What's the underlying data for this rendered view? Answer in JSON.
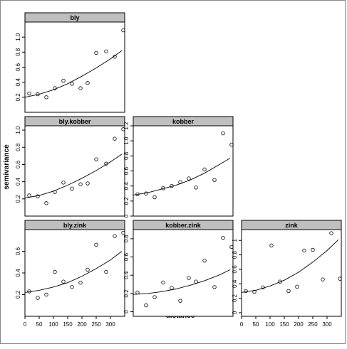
{
  "figure": {
    "ylabel": "semivariance",
    "xlabel": "distance"
  },
  "chart_data": [
    {
      "type": "scatter",
      "title": "bly",
      "xlim": [
        0,
        350
      ],
      "ylim": [
        0,
        1.2
      ],
      "yticks": [
        0.2,
        0.4,
        0.6,
        0.8,
        1.0
      ],
      "ytick_labels": [
        "0.2",
        "0.4",
        "0.6",
        "0.8",
        "1.0"
      ],
      "points": {
        "x": [
          15,
          45,
          75,
          105,
          135,
          165,
          195,
          220,
          250,
          285,
          315,
          345
        ],
        "y": [
          0.25,
          0.24,
          0.2,
          0.32,
          0.42,
          0.38,
          0.32,
          0.39,
          0.79,
          0.81,
          0.74,
          1.09
        ]
      },
      "fit": {
        "x": [
          0,
          50,
          100,
          150,
          200,
          250,
          300,
          340
        ],
        "y": [
          0.2,
          0.24,
          0.3,
          0.38,
          0.48,
          0.59,
          0.71,
          0.82
        ]
      }
    },
    {
      "type": "scatter",
      "title": "bly.kobber",
      "xlim": [
        0,
        350
      ],
      "ylim": [
        0,
        1.05
      ],
      "yticks": [
        0.2,
        0.4,
        0.6,
        0.8,
        1.0
      ],
      "ytick_labels": [
        "0.2",
        "0.4",
        "0.6",
        "0.8",
        "1.0"
      ],
      "points": {
        "x": [
          15,
          45,
          75,
          105,
          135,
          165,
          195,
          220,
          250,
          285,
          315,
          345
        ],
        "y": [
          0.24,
          0.23,
          0.15,
          0.28,
          0.39,
          0.32,
          0.37,
          0.38,
          0.66,
          0.61,
          0.9,
          1.01
        ]
      },
      "fit": {
        "x": [
          0,
          50,
          100,
          150,
          200,
          250,
          300,
          340
        ],
        "y": [
          0.21,
          0.24,
          0.29,
          0.36,
          0.44,
          0.53,
          0.63,
          0.72
        ]
      }
    },
    {
      "type": "scatter",
      "title": "kobber",
      "xlim": [
        0,
        350
      ],
      "ylim": [
        0,
        1.2
      ],
      "yticks": [
        0,
        0.2,
        0.4,
        0.6,
        0.8,
        1.0,
        1.2
      ],
      "ytick_labels": [
        "0",
        "0.2",
        "0.4",
        "0.6",
        "0.8",
        "1.0",
        "1.2"
      ],
      "points": {
        "x": [
          15,
          45,
          75,
          105,
          135,
          165,
          195,
          220,
          250,
          285,
          315,
          345
        ],
        "y": [
          0.29,
          0.3,
          0.25,
          0.37,
          0.4,
          0.45,
          0.5,
          0.38,
          0.62,
          0.48,
          1.1,
          0.95
        ]
      },
      "fit": {
        "x": [
          0,
          50,
          100,
          150,
          200,
          250,
          300,
          340
        ],
        "y": [
          0.28,
          0.31,
          0.36,
          0.41,
          0.48,
          0.57,
          0.68,
          0.77
        ]
      }
    },
    {
      "type": "scatter",
      "title": "bly.zink",
      "xlim": [
        0,
        350
      ],
      "ylim": [
        0,
        0.8
      ],
      "yticks": [
        0.2,
        0.4,
        0.6
      ],
      "ytick_labels": [
        "0.2",
        "0.4",
        "0.6"
      ],
      "points": {
        "x": [
          15,
          45,
          75,
          105,
          135,
          165,
          195,
          220,
          250,
          285,
          315,
          345
        ],
        "y": [
          0.23,
          0.17,
          0.2,
          0.41,
          0.32,
          0.27,
          0.31,
          0.43,
          0.66,
          0.41,
          0.74,
          0.77
        ]
      },
      "fit": {
        "x": [
          0,
          50,
          100,
          150,
          200,
          250,
          300,
          340
        ],
        "y": [
          0.22,
          0.24,
          0.27,
          0.31,
          0.37,
          0.44,
          0.52,
          0.6
        ]
      }
    },
    {
      "type": "scatter",
      "title": "kobber.zink",
      "xlim": [
        0,
        350
      ],
      "ylim": [
        -0.05,
        0.9
      ],
      "yticks": [
        0,
        0.2,
        0.4,
        0.6,
        0.8
      ],
      "ytick_labels": [
        "0",
        "0.2",
        "0.4",
        "0.6",
        "0.8"
      ],
      "points": {
        "x": [
          15,
          45,
          75,
          105,
          135,
          165,
          195,
          220,
          250,
          285,
          315,
          345
        ],
        "y": [
          0.21,
          0.07,
          0.16,
          0.32,
          0.26,
          0.12,
          0.37,
          0.33,
          0.56,
          0.27,
          0.81,
          0.71
        ]
      },
      "fit": {
        "x": [
          0,
          50,
          100,
          150,
          200,
          250,
          300,
          340
        ],
        "y": [
          0.19,
          0.2,
          0.22,
          0.25,
          0.29,
          0.34,
          0.4,
          0.46
        ]
      }
    },
    {
      "type": "scatter",
      "title": "zink",
      "xlim": [
        0,
        350
      ],
      "ylim": [
        -0.05,
        1.15
      ],
      "yticks": [
        0,
        0.2,
        0.4,
        0.6,
        0.8,
        1.0
      ],
      "ytick_labels": [
        "0",
        "0.2",
        "0.4",
        "0.6",
        "0.8",
        "1"
      ],
      "points": {
        "x": [
          15,
          45,
          75,
          105,
          135,
          165,
          195,
          220,
          250,
          285,
          315,
          345
        ],
        "y": [
          0.3,
          0.29,
          0.35,
          0.93,
          0.43,
          0.3,
          0.36,
          0.86,
          0.87,
          0.46,
          1.1,
          0.47
        ]
      },
      "fit": {
        "x": [
          0,
          50,
          100,
          150,
          200,
          250,
          300,
          340
        ],
        "y": [
          0.28,
          0.31,
          0.37,
          0.45,
          0.56,
          0.7,
          0.86,
          1.01
        ]
      }
    }
  ],
  "x_axis": {
    "ticks": [
      0,
      50,
      100,
      150,
      200,
      250,
      300
    ],
    "tick_labels": [
      "0",
      "50",
      "100",
      "150",
      "200",
      "250",
      "300"
    ]
  }
}
